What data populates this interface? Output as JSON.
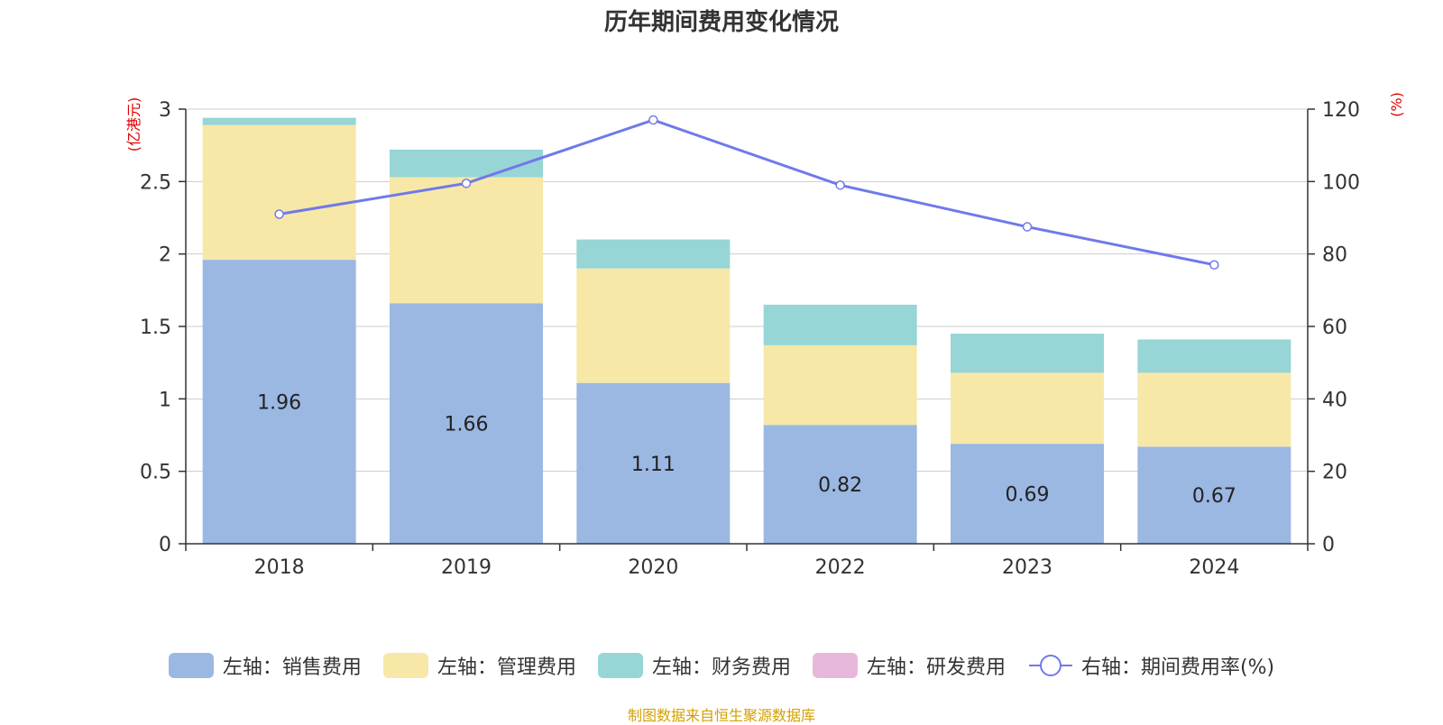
{
  "chart_data": {
    "type": "bar",
    "stacked": true,
    "title": "历年期间费用变化情况",
    "categories": [
      "2018",
      "2019",
      "2020",
      "2022",
      "2023",
      "2024"
    ],
    "y_left": {
      "label": "(亿港元)",
      "lim": [
        0,
        3
      ],
      "ticks": [
        "0",
        "0.5",
        "1",
        "1.5",
        "2",
        "2.5",
        "3"
      ]
    },
    "y_right": {
      "label": "(%)",
      "lim": [
        0,
        120
      ],
      "ticks": [
        "0",
        "20",
        "40",
        "60",
        "80",
        "100",
        "120"
      ]
    },
    "series": [
      {
        "name": "左轴：销售费用",
        "type": "bar",
        "axis": "left",
        "color": "#9bb8e2",
        "values": [
          1.96,
          1.66,
          1.11,
          0.82,
          0.69,
          0.67
        ],
        "data_labels": [
          "1.96",
          "1.66",
          "1.11",
          "0.82",
          "0.69",
          "0.67"
        ]
      },
      {
        "name": "左轴：管理费用",
        "type": "bar",
        "axis": "left",
        "color": "#f7e8a8",
        "values": [
          0.93,
          0.87,
          0.79,
          0.55,
          0.49,
          0.51
        ]
      },
      {
        "name": "左轴：财务费用",
        "type": "bar",
        "axis": "left",
        "color": "#97d5d6",
        "values": [
          0.05,
          0.19,
          0.2,
          0.28,
          0.27,
          0.23
        ]
      },
      {
        "name": "左轴：研发费用",
        "type": "bar",
        "axis": "left",
        "color": "#e8b8da",
        "values": [
          0,
          0,
          0,
          0,
          0,
          0
        ]
      },
      {
        "name": "右轴：期间费用率(%)",
        "type": "line",
        "axis": "right",
        "color": "#7079ea",
        "values": [
          91,
          99.5,
          117,
          99,
          87.5,
          77
        ]
      }
    ],
    "grid": true,
    "legend_position": "bottom"
  },
  "source_note": "制图数据来自恒生聚源数据库"
}
